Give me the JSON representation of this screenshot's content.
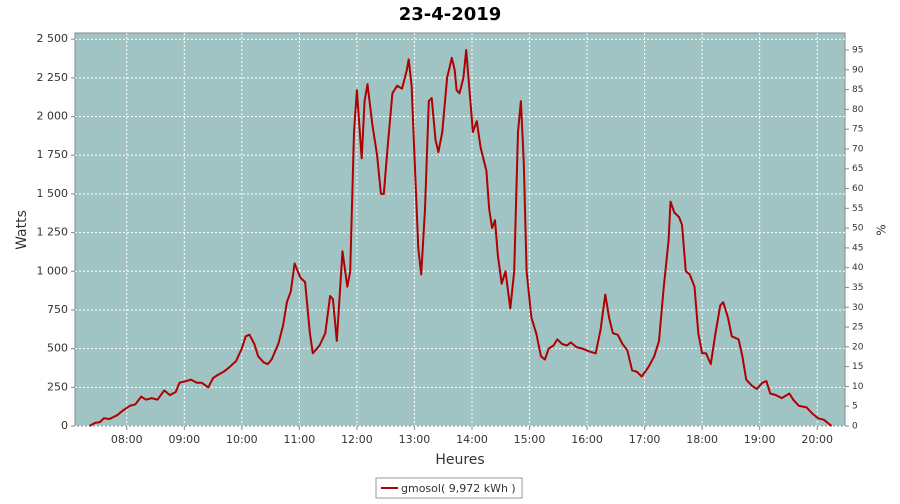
{
  "chart_data": {
    "type": "line",
    "title": "23-4-2019",
    "xlabel": "Heures",
    "ylabel": "Watts",
    "y2label": "%",
    "x": [
      441,
      447,
      452,
      456,
      462,
      470,
      476,
      483,
      489,
      495,
      500,
      506,
      512,
      519,
      525,
      531,
      535,
      542,
      547,
      553,
      558,
      565,
      570,
      575,
      581,
      587,
      594,
      600,
      604,
      608,
      613,
      617,
      623,
      627,
      631,
      638,
      643,
      647,
      651,
      655,
      661,
      666,
      671,
      674,
      681,
      687,
      692,
      695,
      699,
      705,
      710,
      713,
      717,
      720,
      723,
      725,
      728,
      731,
      736,
      741,
      745,
      748,
      752,
      757,
      762,
      767,
      772,
      774,
      777,
      781,
      784,
      787,
      791,
      795,
      798,
      802,
      805,
      809,
      814,
      819,
      822,
      824,
      827,
      831,
      834,
      837,
      841,
      845,
      849,
      855,
      858,
      861,
      864,
      867,
      871,
      875,
      880,
      884,
      888,
      891,
      894,
      897,
      902,
      907,
      912,
      916,
      920,
      925,
      929,
      934,
      939,
      943,
      949,
      955,
      963,
      969,
      974,
      979,
      983,
      987,
      992,
      997,
      1002,
      1007,
      1012,
      1017,
      1024,
      1030,
      1035,
      1040,
      1045,
      1047,
      1051,
      1056,
      1059,
      1063,
      1067,
      1072,
      1076,
      1080,
      1084,
      1089,
      1094,
      1099,
      1102,
      1107,
      1111,
      1118,
      1122,
      1126,
      1132,
      1137,
      1143,
      1147,
      1151,
      1157,
      1163,
      1171,
      1175,
      1181,
      1189,
      1195,
      1201,
      1207,
      1215
    ],
    "series": [
      {
        "name": "gmosol( 9,972 kWh )",
        "color": "#b00000",
        "values": [
          0,
          20,
          25,
          50,
          45,
          70,
          100,
          130,
          140,
          190,
          170,
          180,
          170,
          230,
          200,
          220,
          280,
          290,
          300,
          280,
          280,
          250,
          310,
          330,
          350,
          380,
          420,
          500,
          580,
          590,
          530,
          450,
          410,
          400,
          430,
          530,
          650,
          800,
          870,
          1050,
          960,
          930,
          600,
          470,
          520,
          600,
          840,
          820,
          550,
          1130,
          900,
          1000,
          1900,
          2170,
          1900,
          1730,
          2100,
          2210,
          1950,
          1750,
          1500,
          1500,
          1800,
          2150,
          2200,
          2180,
          2300,
          2370,
          2200,
          1600,
          1150,
          980,
          1400,
          2100,
          2120,
          1850,
          1770,
          1900,
          2250,
          2380,
          2300,
          2170,
          2150,
          2250,
          2430,
          2200,
          1900,
          1970,
          1800,
          1650,
          1400,
          1280,
          1330,
          1100,
          920,
          1000,
          760,
          1000,
          1900,
          2100,
          1700,
          1000,
          700,
          600,
          450,
          430,
          500,
          520,
          560,
          530,
          520,
          540,
          510,
          500,
          480,
          470,
          620,
          850,
          700,
          600,
          590,
          530,
          490,
          360,
          350,
          320,
          380,
          450,
          550,
          900,
          1200,
          1450,
          1380,
          1350,
          1300,
          1000,
          980,
          900,
          600,
          470,
          470,
          400,
          600,
          780,
          800,
          700,
          580,
          560,
          450,
          300,
          260,
          240,
          280,
          290,
          210,
          200,
          180,
          210,
          170,
          130,
          120,
          80,
          50,
          40,
          0
        ]
      }
    ],
    "xlim": [
      426,
      1229
    ],
    "xticks": [
      {
        "value": 480,
        "label": "08:00"
      },
      {
        "value": 540,
        "label": "09:00"
      },
      {
        "value": 600,
        "label": "10:00"
      },
      {
        "value": 660,
        "label": "11:00"
      },
      {
        "value": 720,
        "label": "12:00"
      },
      {
        "value": 780,
        "label": "13:00"
      },
      {
        "value": 840,
        "label": "14:00"
      },
      {
        "value": 900,
        "label": "15:00"
      },
      {
        "value": 960,
        "label": "16:00"
      },
      {
        "value": 1020,
        "label": "17:00"
      },
      {
        "value": 1080,
        "label": "18:00"
      },
      {
        "value": 1140,
        "label": "19:00"
      },
      {
        "value": 1200,
        "label": "20:00"
      }
    ],
    "ylim": [
      0,
      2540
    ],
    "yticks": [
      0,
      250,
      500,
      750,
      {
        "value": 1000,
        "label": "1 000"
      },
      {
        "value": 1250,
        "label": "1 250"
      },
      {
        "value": 1500,
        "label": "1 500"
      },
      {
        "value": 1750,
        "label": "1 750"
      },
      {
        "value": 2000,
        "label": "2 000"
      },
      {
        "value": 2250,
        "label": "2 250"
      },
      {
        "value": 2500,
        "label": "2 500"
      }
    ],
    "y2lim": [
      0,
      99.3
    ],
    "y2ticks": [
      0,
      5,
      10,
      15,
      20,
      25,
      30,
      35,
      40,
      45,
      50,
      55,
      60,
      65,
      70,
      75,
      80,
      85,
      90,
      95
    ],
    "grid": true,
    "background": "#a0c4c4"
  }
}
